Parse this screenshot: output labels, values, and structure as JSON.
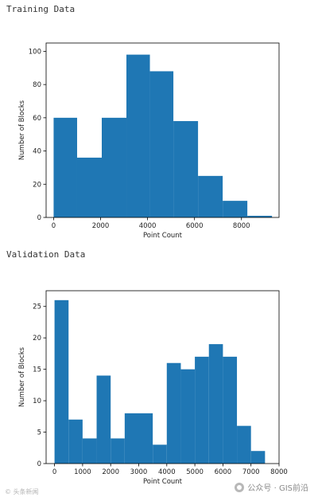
{
  "sections": [
    {
      "title": "Training Data"
    },
    {
      "title": "Validation Data"
    }
  ],
  "watermark": {
    "left_text": "© 头条新闻",
    "right_text": "公众号 · GIS前沿"
  },
  "chart_data": [
    {
      "type": "bar",
      "title": "",
      "xlabel": "Point Count",
      "ylabel": "Number of Blocks",
      "xlim": [
        -320,
        9600
      ],
      "ylim": [
        0,
        105
      ],
      "xticks": [
        0,
        2000,
        4000,
        6000,
        8000
      ],
      "yticks": [
        0,
        20,
        40,
        60,
        80,
        100
      ],
      "bin_edges": [
        0,
        1000,
        2050,
        3100,
        4100,
        5100,
        6150,
        7200,
        8250,
        9300
      ],
      "values": [
        60,
        36,
        60,
        98,
        88,
        58,
        25,
        10,
        1
      ],
      "bar_color": "#1f77b4",
      "grid": false
    },
    {
      "type": "bar",
      "title": "",
      "xlabel": "Point Count",
      "ylabel": "Number of Blocks",
      "xlim": [
        -300,
        8000
      ],
      "ylim": [
        0,
        27.5
      ],
      "xticks": [
        0,
        1000,
        2000,
        3000,
        4000,
        5000,
        6000,
        7000,
        8000
      ],
      "yticks": [
        0,
        5,
        10,
        15,
        20,
        25
      ],
      "bin_edges": [
        0,
        500,
        1000,
        1500,
        2000,
        2500,
        3000,
        3500,
        4000,
        4500,
        5000,
        5500,
        6000,
        6500,
        7000,
        7500
      ],
      "values": [
        26,
        7,
        4,
        14,
        4,
        8,
        8,
        3,
        16,
        15,
        17,
        19,
        17,
        6,
        2
      ],
      "bar_color": "#1f77b4",
      "grid": false
    }
  ]
}
